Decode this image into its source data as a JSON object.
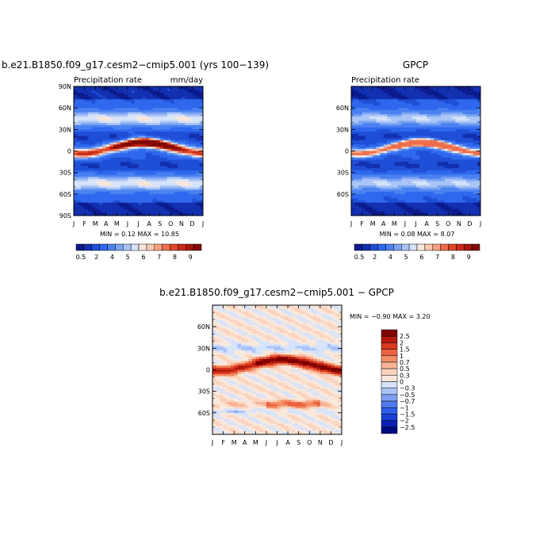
{
  "colors": {
    "precip_scale": [
      "#0b1a8c",
      "#1230b0",
      "#1f4fd6",
      "#2e68ee",
      "#4a82f0",
      "#7aa3f2",
      "#a9c4f6",
      "#d5e3fb",
      "#f9e6da",
      "#fbc7ad",
      "#f5a07e",
      "#ee6e4c",
      "#e0472a",
      "#c92a17",
      "#a8170c",
      "#820a06"
    ],
    "diff_scale": [
      "#000a80",
      "#0a20b4",
      "#1a3fd8",
      "#2f5ce8",
      "#5079ee",
      "#7e9ff3",
      "#abc3f7",
      "#d6e3fb",
      "#f9e8dc",
      "#fbd2bc",
      "#f8b293",
      "#f38c65",
      "#ea6240",
      "#d8381e",
      "#b4190c",
      "#800000"
    ]
  },
  "chart_data": [
    {
      "type": "heatmap",
      "title": "b.e21.B1850.f09_g17.cesm2−cmip5.001 (yrs 100−139)",
      "subtitle_left": "Precipitation rate",
      "subtitle_right": "mm/day",
      "x_ticks": [
        "J",
        "F",
        "M",
        "A",
        "M",
        "J",
        "J",
        "A",
        "S",
        "O",
        "N",
        "D",
        "J"
      ],
      "y_ticks": [
        "90N",
        "60N",
        "30N",
        "0",
        "30S",
        "60S",
        "90S"
      ],
      "y_tick_values": [
        90,
        60,
        30,
        0,
        -30,
        -60,
        -90
      ],
      "ylim": [
        -90,
        90
      ],
      "stats": "MIN =    0.12  MAX =   10.85",
      "min": 0.12,
      "max": 10.85,
      "colorbar_labels": [
        "0.5",
        "2",
        "4",
        "5",
        "6",
        "7",
        "8",
        "9"
      ],
      "field": {
        "itcz_base": 5,
        "itcz_amp": 7,
        "itcz_width": 7,
        "peak": 10.8
      }
    },
    {
      "type": "heatmap",
      "title": "GPCP",
      "subtitle_left": "Precipitation rate",
      "subtitle_right": "",
      "x_ticks": [
        "J",
        "F",
        "M",
        "A",
        "M",
        "J",
        "J",
        "A",
        "S",
        "O",
        "N",
        "D",
        "J"
      ],
      "y_ticks": [
        "60N",
        "30N",
        "0",
        "30S",
        "60S"
      ],
      "y_tick_values": [
        60,
        30,
        0,
        -30,
        -60
      ],
      "ylim": [
        -90,
        90
      ],
      "stats": "MIN =    0.08  MAX =    8.07",
      "min": 0.08,
      "max": 8.07,
      "colorbar_labels": [
        "0.5",
        "2",
        "4",
        "5",
        "6",
        "7",
        "8",
        "9"
      ],
      "field": {
        "itcz_base": 4,
        "itcz_amp": 7,
        "itcz_width": 6,
        "peak": 8.0
      }
    },
    {
      "type": "heatmap",
      "title": "b.e21.B1850.f09_g17.cesm2−cmip5.001  −  GPCP",
      "subtitle_left": "",
      "subtitle_right": "",
      "x_ticks": [
        "J",
        "F",
        "M",
        "A",
        "M",
        "J",
        "J",
        "A",
        "S",
        "O",
        "N",
        "D",
        "J"
      ],
      "y_ticks": [
        "60N",
        "30N",
        "0",
        "30S",
        "60S"
      ],
      "y_tick_values": [
        60,
        30,
        0,
        -30,
        -60
      ],
      "ylim": [
        -90,
        90
      ],
      "stats": "MIN =   −0.90  MAX =    3.20",
      "min": -0.9,
      "max": 3.2,
      "colorbar_labels": [
        "2.5",
        "2",
        "1.5",
        "1",
        "0.7",
        "0.5",
        "0.3",
        "0",
        "−0.3",
        "−0.5",
        "−0.7",
        "−1",
        "−1.5",
        "−2",
        "−2.5"
      ]
    }
  ]
}
